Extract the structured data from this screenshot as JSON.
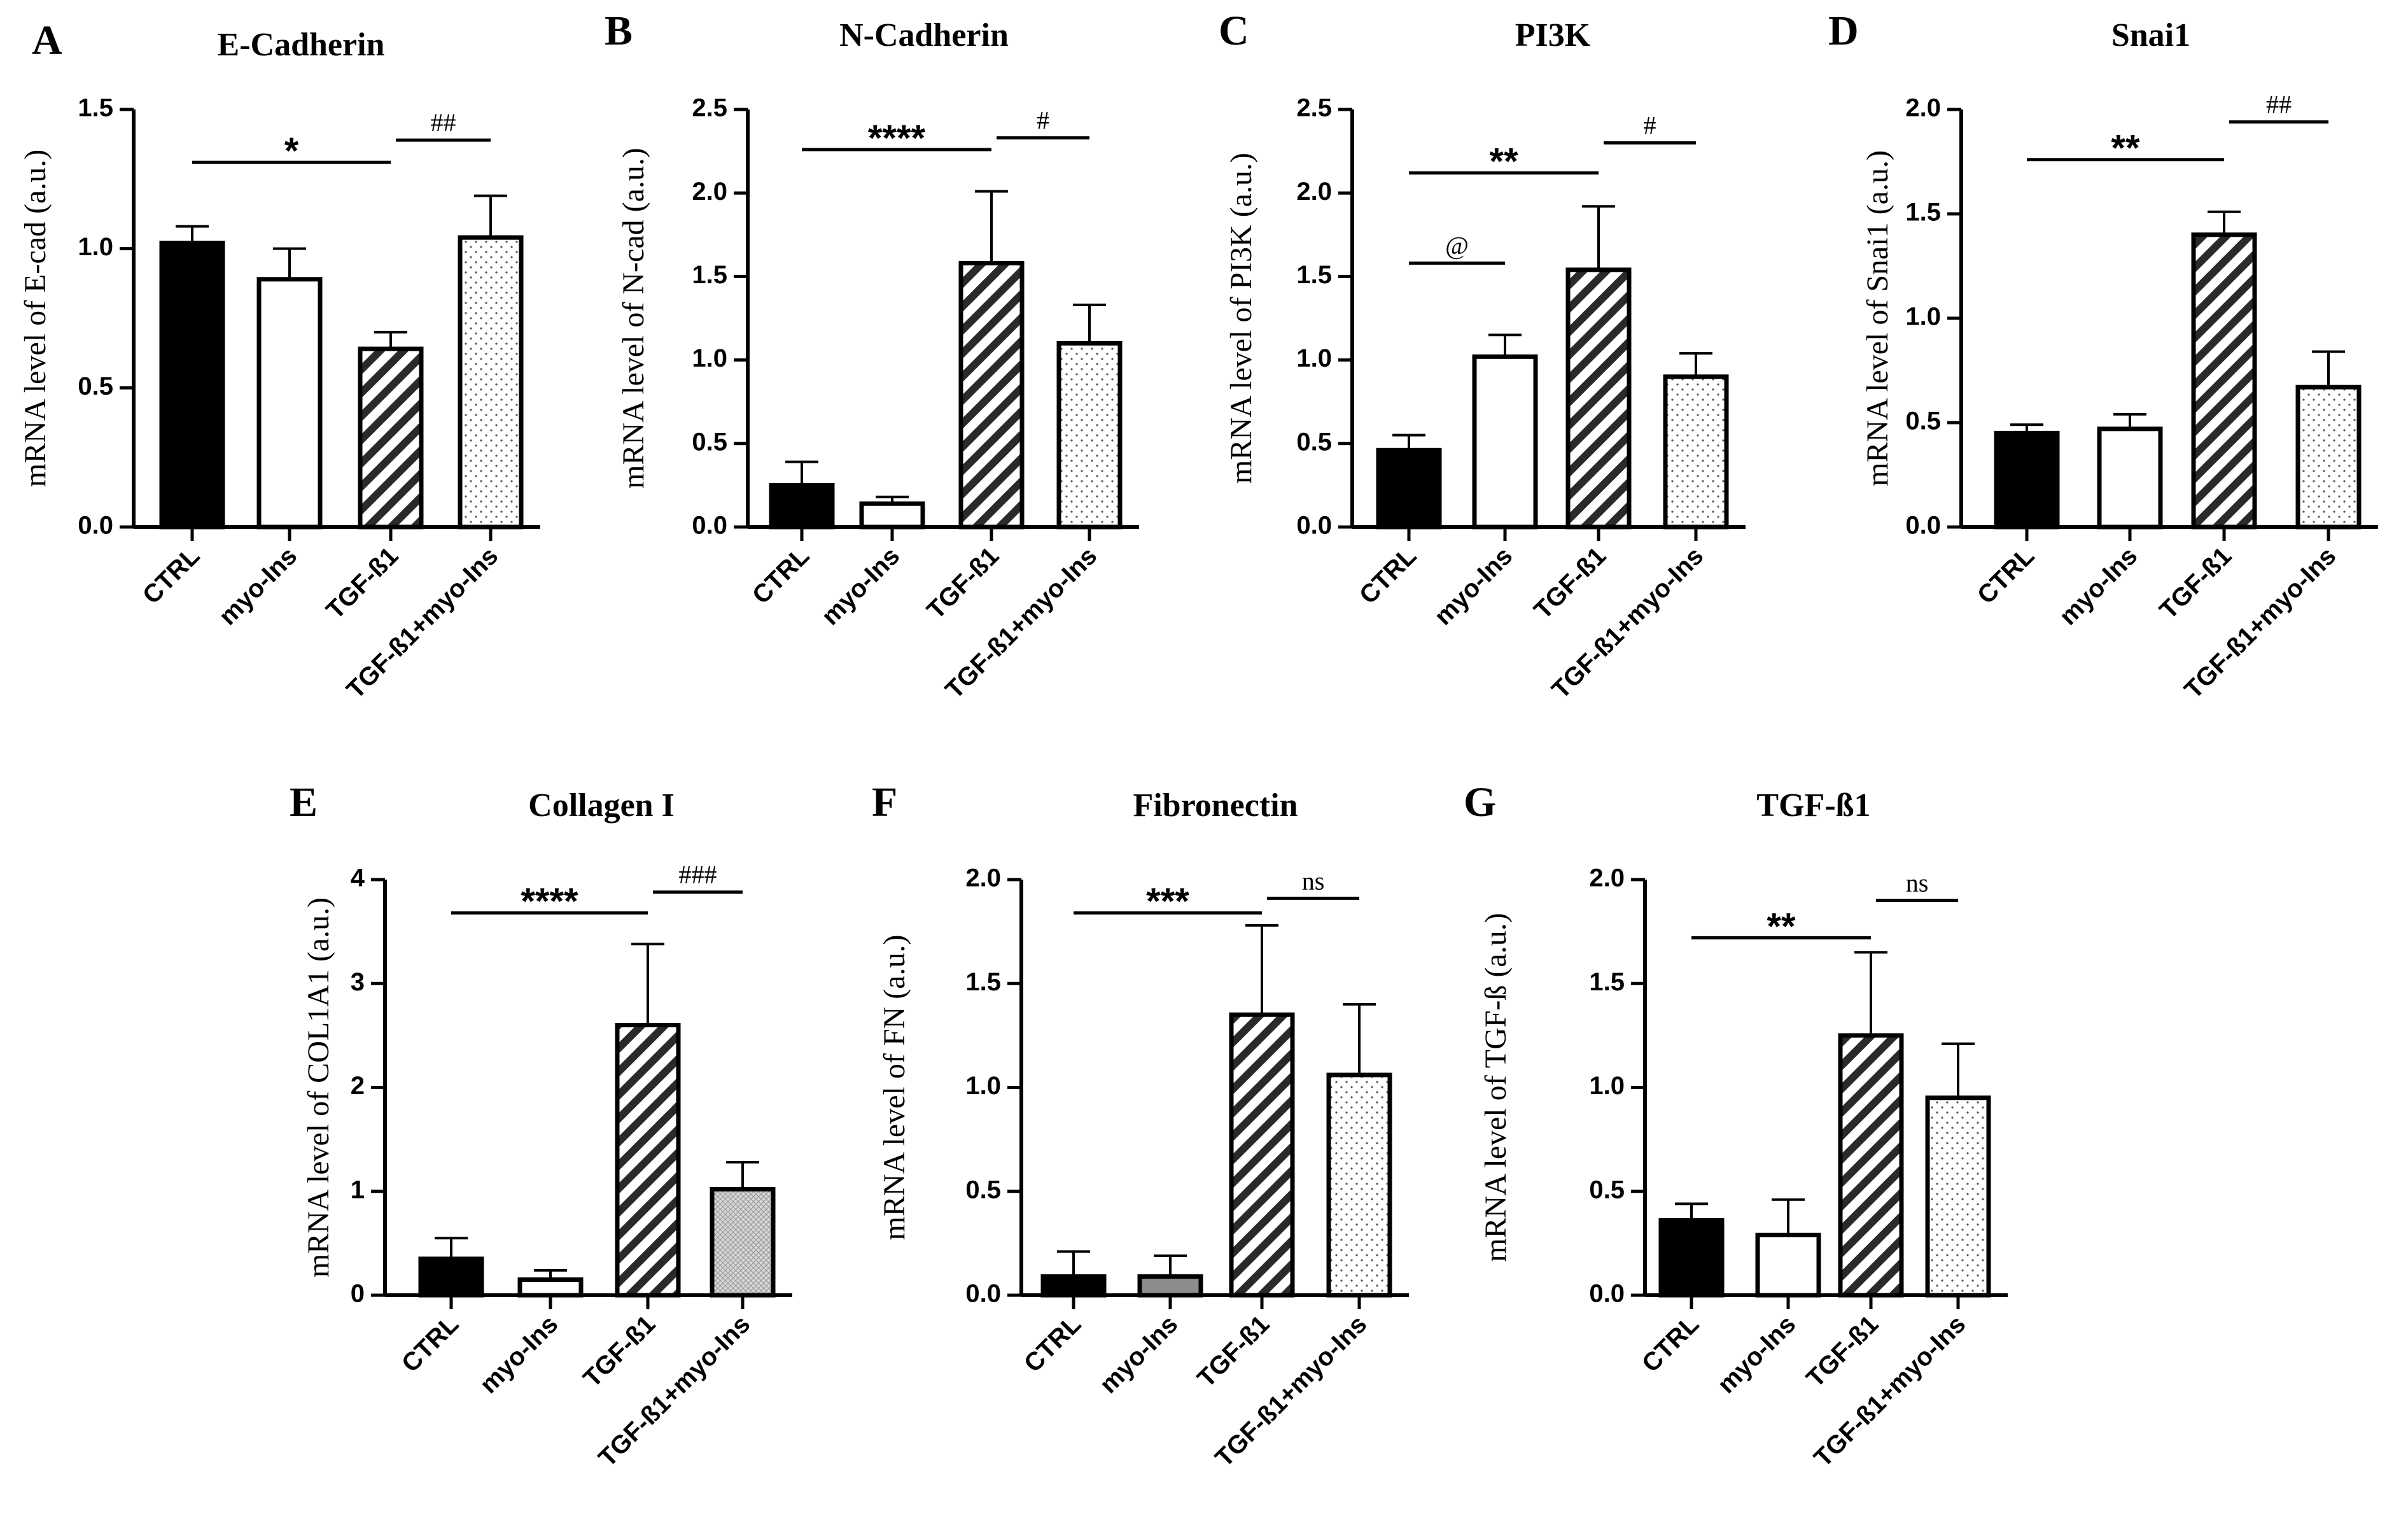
{
  "figure": {
    "panels": [
      "A",
      "B",
      "C",
      "D",
      "E",
      "F",
      "G"
    ]
  },
  "chart_data": [
    {
      "type": "bar",
      "letter": "A",
      "title": "E-Cadherin",
      "ylabel": "mRNA level of E-cad (a.u.)",
      "xlabel": "",
      "categories": [
        "CTRL",
        "myo-Ins",
        "TGF-ß1",
        "TGF-ß1+myo-Ins"
      ],
      "values": [
        1.02,
        0.89,
        0.64,
        1.04
      ],
      "errors": [
        0.06,
        0.11,
        0.06,
        0.15
      ],
      "fills": [
        "solid",
        "white",
        "hatch",
        "dots"
      ],
      "ylim": [
        0,
        1.5
      ],
      "yticks": [
        "0.0",
        "0.5",
        "1.0",
        "1.5"
      ],
      "significance": [
        {
          "from": 0,
          "to": 2,
          "label": "*",
          "y": 1.31
        },
        {
          "from": 2,
          "to": 3,
          "label": "##",
          "y": 1.39
        }
      ]
    },
    {
      "type": "bar",
      "letter": "B",
      "title": "N-Cadherin",
      "ylabel": "mRNA level of N-cad (a.u.)",
      "xlabel": "",
      "categories": [
        "CTRL",
        "myo-Ins",
        "TGF-ß1",
        "TGF-ß1+myo-Ins"
      ],
      "values": [
        0.25,
        0.14,
        1.58,
        1.1
      ],
      "errors": [
        0.14,
        0.04,
        0.43,
        0.23
      ],
      "fills": [
        "solid",
        "white",
        "hatch",
        "dots"
      ],
      "ylim": [
        0,
        2.5
      ],
      "yticks": [
        "0.0",
        "0.5",
        "1.0",
        "1.5",
        "2.0",
        "2.5"
      ],
      "significance": [
        {
          "from": 0,
          "to": 2,
          "label": "****",
          "y": 2.26
        },
        {
          "from": 2,
          "to": 3,
          "label": "#",
          "y": 2.33
        }
      ]
    },
    {
      "type": "bar",
      "letter": "C",
      "title": "PI3K",
      "ylabel": "mRNA level of PI3K (a.u.)",
      "xlabel": "",
      "categories": [
        "CTRL",
        "myo-Ins",
        "TGF-ß1",
        "TGF-ß1+myo-Ins"
      ],
      "values": [
        0.46,
        1.02,
        1.54,
        0.9
      ],
      "errors": [
        0.09,
        0.13,
        0.38,
        0.14
      ],
      "fills": [
        "solid",
        "white",
        "hatch",
        "dots"
      ],
      "ylim": [
        0,
        2.5
      ],
      "yticks": [
        "0.0",
        "0.5",
        "1.0",
        "1.5",
        "2.0",
        "2.5"
      ],
      "significance": [
        {
          "from": 0,
          "to": 2,
          "label": "**",
          "y": 2.12
        },
        {
          "from": 2,
          "to": 3,
          "label": "#",
          "y": 2.3
        },
        {
          "from": 0,
          "to": 1,
          "label": "@",
          "y": 1.58
        }
      ]
    },
    {
      "type": "bar",
      "letter": "D",
      "title": "Snai1",
      "ylabel": "mRNA level of Snai1 (a.u.)",
      "xlabel": "",
      "categories": [
        "CTRL",
        "myo-Ins",
        "TGF-ß1",
        "TGF-ß1+myo-Ins"
      ],
      "values": [
        0.45,
        0.47,
        1.4,
        0.67
      ],
      "errors": [
        0.04,
        0.07,
        0.11,
        0.17
      ],
      "fills": [
        "solid",
        "white",
        "hatch",
        "dots"
      ],
      "ylim": [
        0,
        2.0
      ],
      "yticks": [
        "0.0",
        "0.5",
        "1.0",
        "1.5",
        "2.0"
      ],
      "significance": [
        {
          "from": 0,
          "to": 2,
          "label": "**",
          "y": 1.76
        },
        {
          "from": 2,
          "to": 3,
          "label": "##",
          "y": 1.94
        }
      ]
    },
    {
      "type": "bar",
      "letter": "E",
      "title": "Collagen I",
      "ylabel": "mRNA level of COL1A1 (a.u.)",
      "xlabel": "",
      "categories": [
        "CTRL",
        "myo-Ins",
        "TGF-ß1",
        "TGF-ß1+myo-Ins"
      ],
      "values": [
        0.35,
        0.15,
        2.6,
        1.02
      ],
      "errors": [
        0.2,
        0.09,
        0.78,
        0.26
      ],
      "fills": [
        "solid",
        "white",
        "hatch",
        "crosshatch"
      ],
      "ylim": [
        0,
        4
      ],
      "yticks": [
        "0",
        "1",
        "2",
        "3",
        "4"
      ],
      "significance": [
        {
          "from": 0,
          "to": 2,
          "label": "****",
          "y": 3.68
        },
        {
          "from": 2,
          "to": 3,
          "label": "###",
          "y": 3.88
        }
      ]
    },
    {
      "type": "bar",
      "letter": "F",
      "title": "Fibronectin",
      "ylabel": "mRNA level of FN (a.u.)",
      "xlabel": "",
      "categories": [
        "CTRL",
        "myo-Ins",
        "TGF-ß1",
        "TGF-ß1+myo-Ins"
      ],
      "values": [
        0.09,
        0.09,
        1.35,
        1.06
      ],
      "errors": [
        0.12,
        0.1,
        0.43,
        0.34
      ],
      "fills": [
        "solid",
        "gray",
        "hatch",
        "dots"
      ],
      "ylim": [
        0,
        2.0
      ],
      "yticks": [
        "0.0",
        "0.5",
        "1.0",
        "1.5",
        "2.0"
      ],
      "significance": [
        {
          "from": 0,
          "to": 2,
          "label": "***",
          "y": 1.84
        },
        {
          "from": 2,
          "to": 3,
          "label": "ns",
          "y": 1.91
        }
      ]
    },
    {
      "type": "bar",
      "letter": "G",
      "title": "TGF-ß1",
      "ylabel": "mRNA level of TGF-ß (a.u.)",
      "xlabel": "",
      "categories": [
        "CTRL",
        "myo-Ins",
        "TGF-ß1",
        "TGF-ß1+myo-Ins"
      ],
      "values": [
        0.36,
        0.29,
        1.25,
        0.95
      ],
      "errors": [
        0.08,
        0.17,
        0.4,
        0.26
      ],
      "fills": [
        "solid",
        "white",
        "hatch",
        "dots"
      ],
      "ylim": [
        0,
        2.0
      ],
      "yticks": [
        "0.0",
        "0.5",
        "1.0",
        "1.5",
        "2.0"
      ],
      "significance": [
        {
          "from": 0,
          "to": 2,
          "label": "**",
          "y": 1.72
        },
        {
          "from": 2,
          "to": 3,
          "label": "ns",
          "y": 1.9
        }
      ]
    }
  ]
}
